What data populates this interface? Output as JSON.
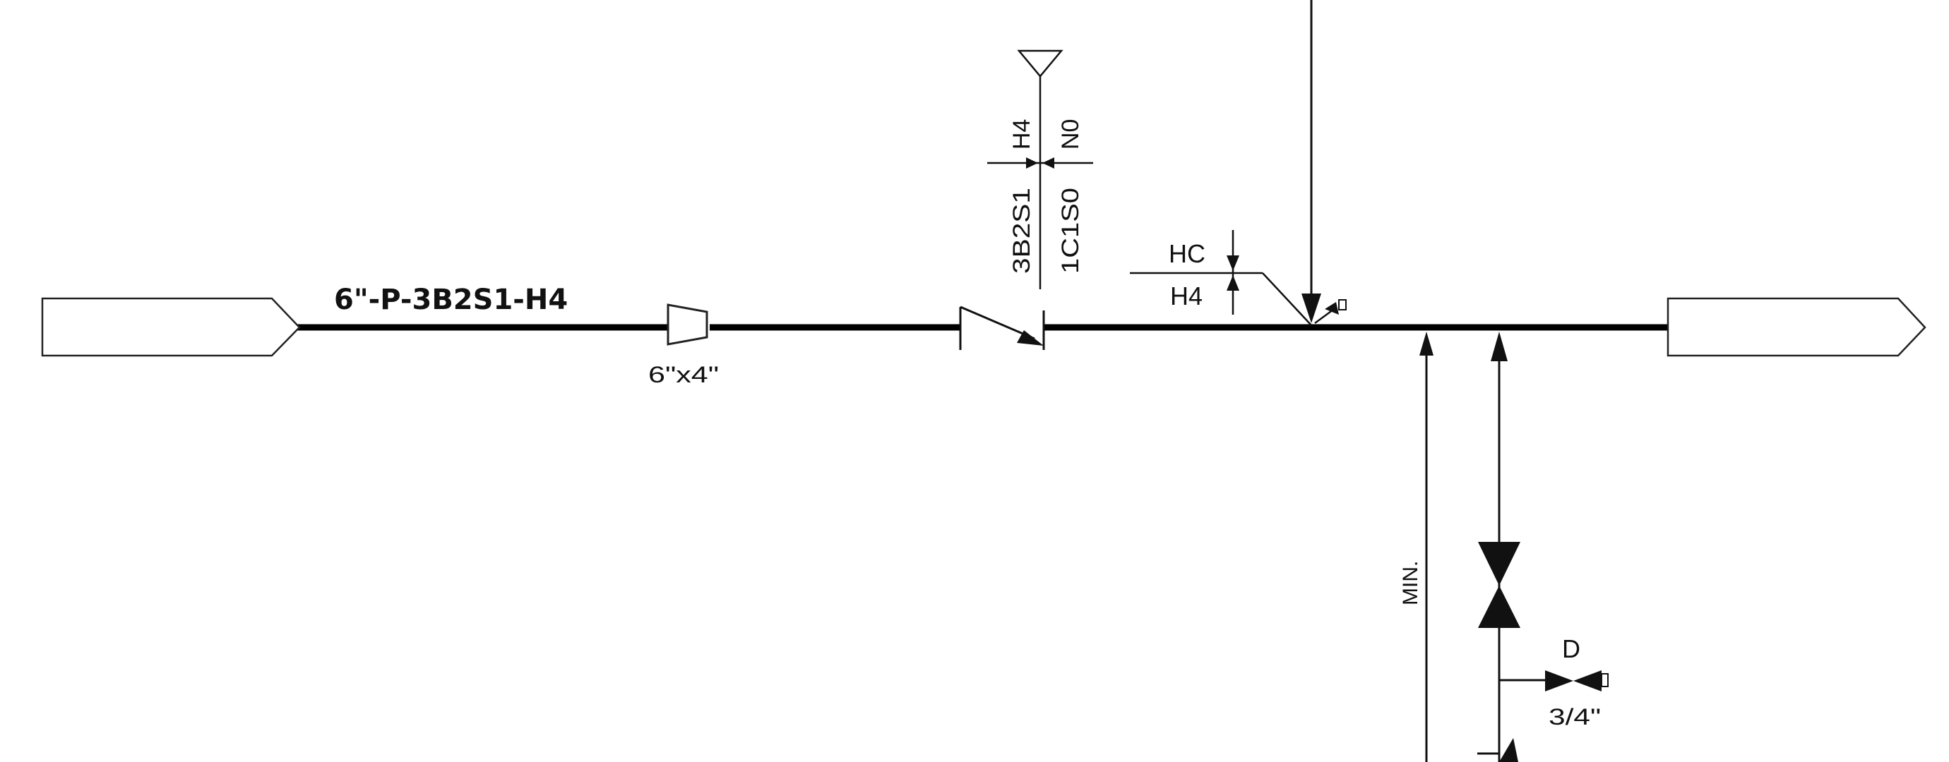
{
  "diagram": {
    "line_number": "6\"-P-3B2S1-H4",
    "reducer_size": "6\"x4\"",
    "spec_break": {
      "top_left": "H4",
      "top_right": "N0",
      "bottom_left": "3B2S1",
      "bottom_right": "1C1S0"
    },
    "insulation": {
      "upper": "HC",
      "lower": "H4"
    },
    "branch_note": "MIN.",
    "drain_tag": "D",
    "drain_size": "3/4\""
  }
}
